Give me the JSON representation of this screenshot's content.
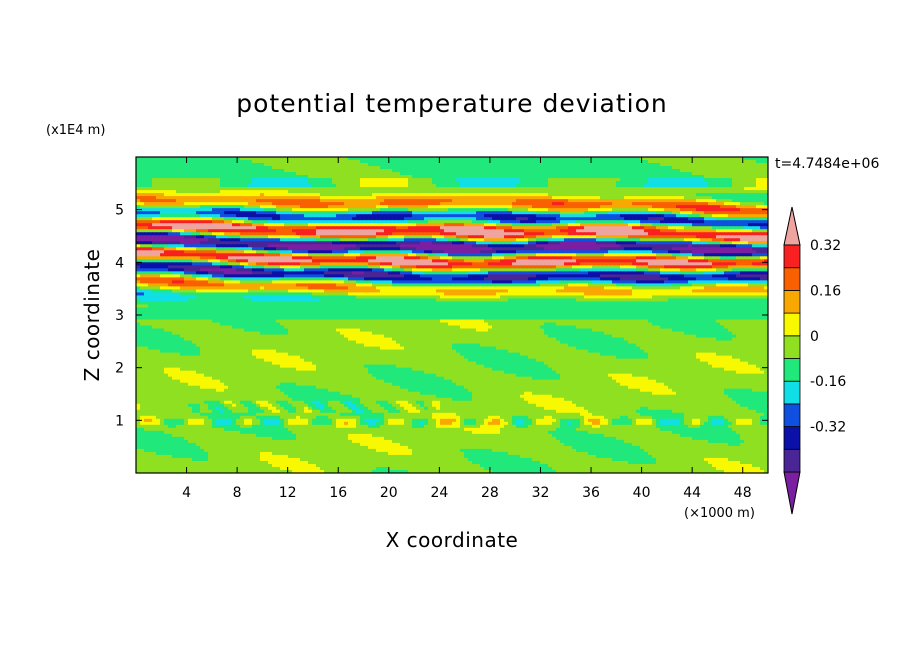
{
  "chart_data": {
    "type": "heatmap",
    "title": "potential temperature deviation",
    "xlabel": "X coordinate",
    "ylabel": "Z coordinate",
    "x_unit": "(×1000 m)",
    "y_unit": "(x1E4 m)",
    "time_label": "t=4.7484e+06",
    "xlim": [
      0,
      50
    ],
    "ylim": [
      0,
      6
    ],
    "x_ticks": [
      4,
      8,
      12,
      16,
      20,
      24,
      28,
      32,
      36,
      40,
      44,
      48
    ],
    "y_ticks": [
      1,
      2,
      3,
      4,
      5
    ],
    "colorbar": {
      "levels": [
        -0.48,
        -0.4,
        -0.32,
        -0.24,
        -0.16,
        -0.08,
        0,
        0.08,
        0.16,
        0.24,
        0.32,
        0.4
      ],
      "labeled_levels": [
        "-0.32",
        "-0.16",
        "0",
        "0.16",
        "0.32"
      ],
      "colors": [
        "#7b1fa2",
        "#4a2596",
        "#0a10a8",
        "#1050e0",
        "#10e0e6",
        "#20e87a",
        "#8ee020",
        "#f8f800",
        "#f8a800",
        "#f86000",
        "#f82020",
        "#f0a4a0"
      ],
      "extend": "both"
    },
    "description_levels_by_z": [
      {
        "z": 5.6,
        "pattern": "mostly near zero, green"
      },
      {
        "z": 4.0,
        "pattern": "strong alternating bands, -0.4 to +0.4"
      },
      {
        "z": 2.0,
        "pattern": "weak, near 0 to +0.08"
      },
      {
        "z": 1.0,
        "pattern": "weak with small patches up to ±0.2"
      }
    ]
  }
}
